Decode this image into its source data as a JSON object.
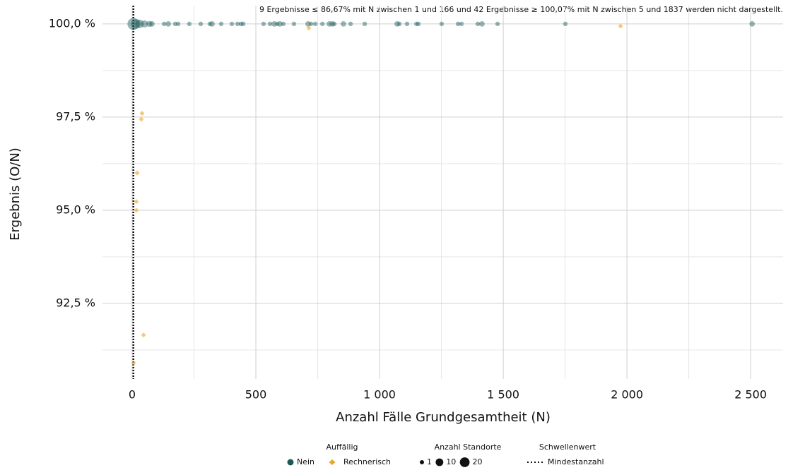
{
  "chart_data": {
    "type": "scatter",
    "annotation": "9 Ergebnisse ≤ 86,67% mit N zwischen 1 und 166 und 42 Ergebnisse ≥ 100,07% mit N zwischen 5 und 1837 werden nicht dargestellt.",
    "x_label": "Anzahl Fälle Grundgesamtheit (N)",
    "y_label": "Ergebnis (O/N)",
    "xlim": [
      -120,
      2631
    ],
    "ylim": [
      90.47,
      100.49
    ],
    "xticks": [
      0,
      500,
      {
        "value": 1000,
        "label": "1 000"
      },
      {
        "value": 1500,
        "label": "1 500"
      },
      {
        "value": 2000,
        "label": "2 000"
      },
      {
        "value": 2500,
        "label": "2 500"
      }
    ],
    "yticks": [
      {
        "value": 92.5,
        "label": "92,5 %"
      },
      {
        "value": 95,
        "label": "95,0 %"
      },
      {
        "value": 97.5,
        "label": "97,5 %"
      },
      {
        "value": 100,
        "label": "100,0 %"
      }
    ],
    "minor_xticks": [
      250,
      750,
      1250,
      1750,
      2250
    ],
    "minor_yticks": [
      91.25,
      93.75,
      96.25,
      98.75
    ],
    "grid": true,
    "threshold_x": 5,
    "series": [
      {
        "name": "Nein",
        "color": "#1b5a58",
        "marker": "circle",
        "x": [
          5,
          15,
          30,
          50,
          70,
          80,
          129,
          146,
          174,
          186,
          231,
          277,
          314,
          323,
          360,
          403,
          426,
          440,
          449,
          531,
          557,
          574,
          586,
          597,
          611,
          654,
          711,
          723,
          740,
          769,
          797,
          809,
          817,
          854,
          883,
          940,
          1071,
          1080,
          1111,
          1149,
          1157,
          1251,
          1317,
          1331,
          1397,
          1414,
          1477,
          1751,
          2506
        ],
        "values": [
          100,
          100,
          100,
          100,
          100,
          100,
          100,
          100,
          100,
          100,
          100,
          100,
          100,
          100,
          100,
          100,
          100,
          100,
          100,
          100,
          100,
          100,
          100,
          100,
          100,
          100,
          100,
          100,
          100,
          100,
          100,
          100,
          100,
          100,
          100,
          100,
          100,
          100,
          100,
          100,
          100,
          100,
          100,
          100,
          100,
          100,
          100,
          100,
          100
        ],
        "sizes": [
          20,
          12,
          8,
          5,
          3,
          2,
          1,
          2,
          1,
          1,
          1,
          1,
          1,
          2,
          1,
          1,
          1,
          1,
          1,
          1,
          1,
          2,
          1,
          2,
          1,
          1,
          2,
          1,
          1,
          1,
          2,
          2,
          1,
          2,
          1,
          1,
          2,
          1,
          1,
          1,
          1,
          1,
          1,
          1,
          1,
          2,
          1,
          1,
          2
        ]
      },
      {
        "name": "Rechnerisch",
        "color": "#e6a82a",
        "marker": "diamond",
        "x": [
          714,
          1974,
          40,
          37,
          20,
          17,
          17,
          46,
          6
        ],
        "values": [
          99.89,
          99.94,
          97.6,
          97.44,
          96.0,
          95.23,
          95.0,
          91.65,
          90.9
        ],
        "sizes": [
          1,
          1,
          1,
          1,
          1,
          1,
          1,
          1,
          1
        ]
      }
    ],
    "legend": {
      "color_title": "Auffällig",
      "size_title": "Anzahl Standorte",
      "sizes": [
        1,
        10,
        20
      ],
      "line_title": "Schwellenwert",
      "line_label": "Mindestanzahl"
    }
  }
}
